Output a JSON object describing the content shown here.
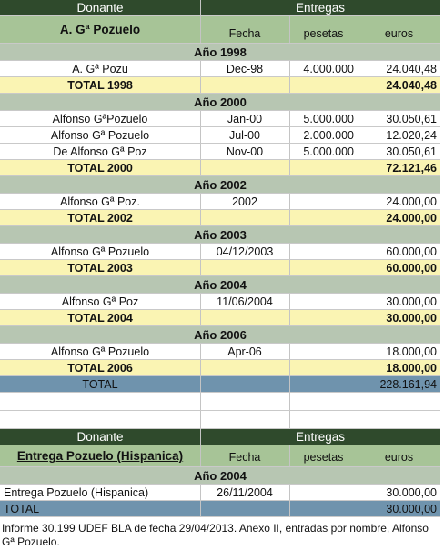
{
  "tables": [
    {
      "header": [
        "Donante",
        "Entregas"
      ],
      "subheader": [
        "A. Gª Pozuelo",
        "Fecha",
        "pesetas",
        "euros"
      ],
      "years": [
        {
          "year": "Año 1998",
          "rows": [
            [
              "A. Gª Pozu",
              "Dec-98",
              "4.000.000",
              "24.040,48"
            ]
          ],
          "total": [
            "TOTAL 1998",
            "24.040,48"
          ]
        },
        {
          "year": "Año 2000",
          "rows": [
            [
              "Alfonso GªPozuelo",
              "Jan-00",
              "5.000.000",
              "30.050,61"
            ],
            [
              "Alfonso Gª Pozuelo",
              "Jul-00",
              "2.000.000",
              "12.020,24"
            ],
            [
              "De Alfonso Gª Poz",
              "Nov-00",
              "5.000.000",
              "30.050,61"
            ]
          ],
          "total": [
            "TOTAL 2000",
            "72.121,46"
          ]
        },
        {
          "year": "Año 2002",
          "rows": [
            [
              "Alfonso Gª Poz.",
              "2002",
              null,
              "24.000,00"
            ]
          ],
          "total": [
            "TOTAL 2002",
            "24.000,00"
          ]
        },
        {
          "year": "Año 2003",
          "rows": [
            [
              "Alfonso Gª Pozuelo",
              "04/12/2003",
              null,
              "60.000,00"
            ]
          ],
          "total": [
            "TOTAL 2003",
            "60.000,00"
          ]
        },
        {
          "year": "Año 2004",
          "rows": [
            [
              "Alfonso Gª Poz",
              "11/06/2004",
              null,
              "30.000,00"
            ]
          ],
          "total": [
            "TOTAL 2004",
            "30.000,00"
          ]
        },
        {
          "year": "Año 2006",
          "rows": [
            [
              "Alfonso Gª Pozuelo",
              "Apr-06",
              null,
              "18.000,00"
            ]
          ],
          "total": [
            "TOTAL 2006",
            "18.000,00"
          ]
        }
      ],
      "grand_total": [
        "TOTAL",
        "228.161,94"
      ]
    },
    {
      "header": [
        "Donante",
        "Entregas"
      ],
      "subheader": [
        "Entrega Pozuelo (Hispanica)",
        "Fecha",
        "pesetas",
        "euros"
      ],
      "years": [
        {
          "year": "Año 2004",
          "rows": [
            [
              "Entrega Pozuelo (Hispanica)",
              "26/11/2004",
              null,
              "30.000,00"
            ]
          ]
        }
      ],
      "grand_total": [
        "TOTAL",
        "30.000,00"
      ]
    }
  ],
  "caption": "Informe 30.199 UDEF BLA de fecha 29/04/2013. Anexo II, entradas por nombre, Alfonso Gª Pozuelo."
}
